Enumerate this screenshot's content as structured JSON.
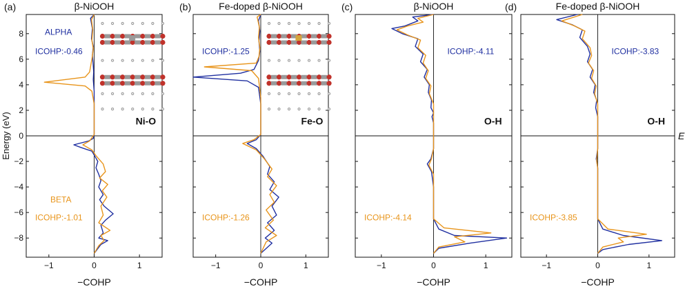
{
  "figure": {
    "ylabel": "Energy (eV)",
    "fermi_label": "E",
    "legend": {
      "alpha": "ALPHA",
      "beta": "BETA"
    },
    "colors": {
      "alpha": "#1f2fa0",
      "beta": "#e8941a",
      "axis": "#111111"
    }
  },
  "chart_data": [
    {
      "type": "line",
      "panel_letter": "(a)",
      "title": "β-NiOOH",
      "bond": "Ni-O",
      "xlabel": "−COHP",
      "xlim": [
        -1.5,
        1.5
      ],
      "ylim": [
        -9.5,
        9.5
      ],
      "xticks": [
        -1,
        0,
        1
      ],
      "yticks": [
        8,
        6,
        4,
        2,
        0,
        -2,
        -4,
        -6,
        -8
      ],
      "show_ytick_labels": true,
      "icohp_alpha": "ICOHP:-0.46",
      "icohp_beta": "ICOHP:-1.01",
      "series": [
        {
          "name": "ALPHA",
          "points": [
            [
              0,
              9.5
            ],
            [
              -0.08,
              9.2
            ],
            [
              -0.04,
              8.4
            ],
            [
              -0.06,
              7.6
            ],
            [
              -0.02,
              7.0
            ],
            [
              -0.04,
              6.3
            ],
            [
              -0.02,
              5.5
            ],
            [
              -0.01,
              5.0
            ],
            [
              -0.02,
              4.4
            ],
            [
              0,
              3.5
            ],
            [
              0,
              1.5
            ],
            [
              0,
              0.1
            ],
            [
              -0.02,
              -0.2
            ],
            [
              -0.12,
              -0.4
            ],
            [
              -0.45,
              -0.7
            ],
            [
              -0.3,
              -0.9
            ],
            [
              -0.05,
              -1.2
            ],
            [
              0,
              -1.5
            ],
            [
              0.08,
              -2.0
            ],
            [
              0.04,
              -2.5
            ],
            [
              0.1,
              -3.0
            ],
            [
              0.15,
              -3.5
            ],
            [
              0.1,
              -4.0
            ],
            [
              0.2,
              -4.6
            ],
            [
              0.12,
              -5.0
            ],
            [
              0.22,
              -5.5
            ],
            [
              0.42,
              -6.1
            ],
            [
              0.25,
              -6.6
            ],
            [
              0.15,
              -7.0
            ],
            [
              0.2,
              -7.6
            ],
            [
              0.1,
              -8.0
            ],
            [
              0.3,
              -8.2
            ],
            [
              0.15,
              -8.5
            ],
            [
              0,
              -9.2
            ]
          ]
        },
        {
          "name": "BETA",
          "points": [
            [
              0,
              9.5
            ],
            [
              -0.06,
              9.1
            ],
            [
              -0.03,
              8.3
            ],
            [
              -0.05,
              7.5
            ],
            [
              -0.02,
              6.8
            ],
            [
              -0.05,
              6.0
            ],
            [
              -0.1,
              5.0
            ],
            [
              -0.2,
              4.6
            ],
            [
              -1.1,
              4.2
            ],
            [
              -0.2,
              3.9
            ],
            [
              -0.05,
              3.5
            ],
            [
              0,
              2.5
            ],
            [
              0,
              0.1
            ],
            [
              -0.1,
              -0.4
            ],
            [
              -0.25,
              -0.7
            ],
            [
              -0.05,
              -1.1
            ],
            [
              0.05,
              -1.6
            ],
            [
              0.2,
              -2.2
            ],
            [
              0.25,
              -2.8
            ],
            [
              0.12,
              -3.3
            ],
            [
              0.3,
              -3.8
            ],
            [
              0.18,
              -4.3
            ],
            [
              0.28,
              -4.8
            ],
            [
              0.15,
              -5.5
            ],
            [
              0.2,
              -6.2
            ],
            [
              0.1,
              -6.8
            ],
            [
              0.35,
              -7.4
            ],
            [
              0.15,
              -7.8
            ],
            [
              0.22,
              -8.2
            ],
            [
              0.1,
              -8.6
            ],
            [
              0,
              -9.2
            ]
          ]
        }
      ]
    },
    {
      "type": "line",
      "panel_letter": "(b)",
      "title": "Fe-doped β-NiOOH",
      "bond": "Fe-O",
      "xlabel": "−COHP",
      "xlim": [
        -1.5,
        1.5
      ],
      "ylim": [
        -9.5,
        9.5
      ],
      "xticks": [
        -1,
        0,
        1
      ],
      "yticks": [
        8,
        6,
        4,
        2,
        0,
        -2,
        -4,
        -6,
        -8
      ],
      "show_ytick_labels": false,
      "icohp_alpha": "ICOHP:-1.25",
      "icohp_beta": "ICOHP:-1.26",
      "series": [
        {
          "name": "ALPHA",
          "points": [
            [
              0,
              9.5
            ],
            [
              -0.05,
              9.0
            ],
            [
              -0.02,
              8.2
            ],
            [
              -0.04,
              7.4
            ],
            [
              -0.02,
              6.6
            ],
            [
              -0.05,
              5.9
            ],
            [
              -0.15,
              5.2
            ],
            [
              -0.45,
              4.9
            ],
            [
              -1.5,
              4.6
            ],
            [
              -0.3,
              4.3
            ],
            [
              -0.05,
              3.8
            ],
            [
              0,
              2.5
            ],
            [
              0,
              0.1
            ],
            [
              -0.1,
              -0.3
            ],
            [
              -0.3,
              -0.6
            ],
            [
              -0.1,
              -1.0
            ],
            [
              0.05,
              -1.6
            ],
            [
              0.2,
              -2.4
            ],
            [
              0.15,
              -3.0
            ],
            [
              0.3,
              -3.6
            ],
            [
              0.2,
              -4.2
            ],
            [
              0.4,
              -4.8
            ],
            [
              0.25,
              -5.5
            ],
            [
              0.35,
              -6.2
            ],
            [
              0.15,
              -6.8
            ],
            [
              0.3,
              -7.4
            ],
            [
              0.1,
              -8.0
            ],
            [
              0.25,
              -8.4
            ],
            [
              0,
              -9.2
            ]
          ]
        },
        {
          "name": "BETA",
          "points": [
            [
              0,
              9.5
            ],
            [
              -0.08,
              9.3
            ],
            [
              -0.03,
              8.5
            ],
            [
              -0.05,
              7.7
            ],
            [
              -0.02,
              6.9
            ],
            [
              -0.04,
              6.2
            ],
            [
              -0.1,
              5.7
            ],
            [
              -1.25,
              5.4
            ],
            [
              -0.2,
              5.1
            ],
            [
              -0.05,
              4.5
            ],
            [
              0,
              3.0
            ],
            [
              0,
              0.1
            ],
            [
              -0.15,
              -0.3
            ],
            [
              -0.4,
              -0.6
            ],
            [
              -0.1,
              -1.1
            ],
            [
              0.08,
              -1.8
            ],
            [
              0.25,
              -2.6
            ],
            [
              0.15,
              -3.2
            ],
            [
              0.35,
              -3.9
            ],
            [
              0.2,
              -4.6
            ],
            [
              0.3,
              -5.2
            ],
            [
              0.12,
              -5.8
            ],
            [
              0.28,
              -6.6
            ],
            [
              0.1,
              -7.2
            ],
            [
              0.35,
              -7.8
            ],
            [
              0.12,
              -8.3
            ],
            [
              0,
              -9.2
            ]
          ]
        }
      ]
    },
    {
      "type": "line",
      "panel_letter": "(c)",
      "title": "β-NiOOH",
      "bond": "O-H",
      "xlabel": "−COHP",
      "xlim": [
        -1.5,
        1.5
      ],
      "ylim": [
        -9.5,
        9.5
      ],
      "xticks": [
        -1,
        0,
        1
      ],
      "yticks": [
        8,
        6,
        4,
        2,
        0,
        -2,
        -4,
        -6,
        -8
      ],
      "show_ytick_labels": false,
      "icohp_alpha": "ICOHP:-4.11",
      "icohp_beta": "ICOHP:-4.14",
      "series": [
        {
          "name": "ALPHA",
          "points": [
            [
              0,
              9.5
            ],
            [
              -0.4,
              9.3
            ],
            [
              -0.3,
              9.0
            ],
            [
              -0.55,
              8.6
            ],
            [
              -0.8,
              8.4
            ],
            [
              -0.6,
              8.0
            ],
            [
              -0.3,
              7.6
            ],
            [
              -0.35,
              7.0
            ],
            [
              -0.2,
              6.4
            ],
            [
              -0.25,
              5.8
            ],
            [
              -0.12,
              5.2
            ],
            [
              -0.18,
              4.6
            ],
            [
              -0.08,
              4.0
            ],
            [
              -0.1,
              3.4
            ],
            [
              -0.04,
              2.8
            ],
            [
              -0.05,
              2.2
            ],
            [
              0,
              1.8
            ],
            [
              -0.03,
              1.5
            ],
            [
              0,
              1.0
            ],
            [
              0,
              0.1
            ],
            [
              0,
              -1.0
            ],
            [
              -0.05,
              -1.8
            ],
            [
              -0.12,
              -2.2
            ],
            [
              -0.04,
              -2.8
            ],
            [
              0,
              -4.0
            ],
            [
              0,
              -6.5
            ],
            [
              0.1,
              -7.3
            ],
            [
              0.4,
              -7.8
            ],
            [
              1.4,
              -8.0
            ],
            [
              0.7,
              -8.4
            ],
            [
              0.1,
              -8.8
            ],
            [
              0,
              -9.2
            ]
          ]
        },
        {
          "name": "BETA",
          "points": [
            [
              0,
              9.5
            ],
            [
              -0.3,
              9.2
            ],
            [
              -0.2,
              8.9
            ],
            [
              -0.5,
              8.6
            ],
            [
              -0.7,
              8.3
            ],
            [
              -0.5,
              7.9
            ],
            [
              -0.25,
              7.5
            ],
            [
              -0.3,
              6.9
            ],
            [
              -0.15,
              6.3
            ],
            [
              -0.2,
              5.7
            ],
            [
              -0.1,
              5.1
            ],
            [
              -0.15,
              4.5
            ],
            [
              -0.05,
              3.9
            ],
            [
              -0.08,
              3.3
            ],
            [
              0,
              2.5
            ],
            [
              0,
              0.1
            ],
            [
              0,
              -1.0
            ],
            [
              -0.04,
              -1.8
            ],
            [
              -0.09,
              -2.3
            ],
            [
              0,
              -3.0
            ],
            [
              0,
              -6.5
            ],
            [
              0.2,
              -7.2
            ],
            [
              1.1,
              -7.6
            ],
            [
              0.4,
              -7.9
            ],
            [
              0.6,
              -8.3
            ],
            [
              0.1,
              -8.7
            ],
            [
              0,
              -9.2
            ]
          ]
        }
      ]
    },
    {
      "type": "line",
      "panel_letter": "(d)",
      "title": "Fe-doped β-NiOOH",
      "bond": "O-H",
      "xlabel": "−COHP",
      "xlim": [
        -1.5,
        1.5
      ],
      "ylim": [
        -9.5,
        9.5
      ],
      "xticks": [
        -1,
        0,
        1
      ],
      "yticks": [
        8,
        6,
        4,
        2,
        0,
        -2,
        -4,
        -6,
        -8
      ],
      "show_ytick_labels": false,
      "icohp_alpha": "ICOHP:-3.83",
      "icohp_beta": "ICOHP:-3.85",
      "series": [
        {
          "name": "ALPHA",
          "points": [
            [
              -0.4,
              9.5
            ],
            [
              -0.8,
              9.1
            ],
            [
              -0.5,
              8.7
            ],
            [
              -0.3,
              8.3
            ],
            [
              -0.35,
              7.7
            ],
            [
              -0.2,
              7.0
            ],
            [
              -0.15,
              6.4
            ],
            [
              -0.2,
              5.8
            ],
            [
              -0.1,
              5.2
            ],
            [
              -0.15,
              4.6
            ],
            [
              -0.05,
              4.0
            ],
            [
              -0.08,
              3.4
            ],
            [
              -0.02,
              2.8
            ],
            [
              -0.04,
              2.2
            ],
            [
              0,
              1.5
            ],
            [
              0,
              0.1
            ],
            [
              0,
              -1.0
            ],
            [
              -0.03,
              -1.8
            ],
            [
              0,
              -2.5
            ],
            [
              0,
              -6.5
            ],
            [
              0.1,
              -7.3
            ],
            [
              0.5,
              -7.8
            ],
            [
              1.25,
              -8.2
            ],
            [
              0.6,
              -8.5
            ],
            [
              0.1,
              -8.9
            ],
            [
              0,
              -9.2
            ]
          ]
        },
        {
          "name": "BETA",
          "points": [
            [
              -0.3,
              9.5
            ],
            [
              -0.7,
              9.0
            ],
            [
              -0.45,
              8.6
            ],
            [
              -0.25,
              8.2
            ],
            [
              -0.3,
              7.6
            ],
            [
              -0.15,
              6.9
            ],
            [
              -0.12,
              6.3
            ],
            [
              -0.18,
              5.7
            ],
            [
              -0.08,
              5.1
            ],
            [
              -0.12,
              4.5
            ],
            [
              -0.03,
              3.9
            ],
            [
              -0.06,
              3.3
            ],
            [
              0,
              2.5
            ],
            [
              0,
              0.1
            ],
            [
              0,
              -1.0
            ],
            [
              -0.02,
              -1.9
            ],
            [
              0,
              -2.6
            ],
            [
              0,
              -6.5
            ],
            [
              0.2,
              -7.3
            ],
            [
              0.95,
              -7.7
            ],
            [
              0.4,
              -8.0
            ],
            [
              0.5,
              -8.3
            ],
            [
              0.1,
              -8.7
            ],
            [
              0,
              -9.2
            ]
          ]
        }
      ]
    }
  ]
}
